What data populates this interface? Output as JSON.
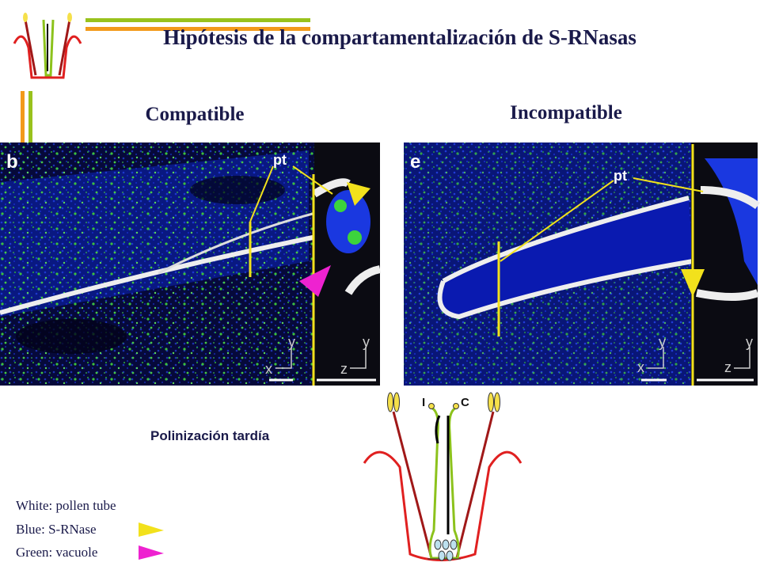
{
  "header": {
    "title": "Hipótesis de la compartamentalización de S-RNasas"
  },
  "panels": [
    {
      "heading": "Compatible",
      "label": "b",
      "annotation": "pt",
      "axes": [
        "y",
        "x",
        "y",
        "z"
      ]
    },
    {
      "heading": "Incompatible",
      "label": "e",
      "annotation": "pt",
      "axes": [
        "y",
        "x",
        "y",
        "z"
      ]
    }
  ],
  "caption": "Polinización tardía",
  "diagram": {
    "labels": [
      "I",
      "C"
    ]
  },
  "legend": [
    "White: pollen tube",
    "Blue: S-RNase",
    "Green: vacuole"
  ]
}
